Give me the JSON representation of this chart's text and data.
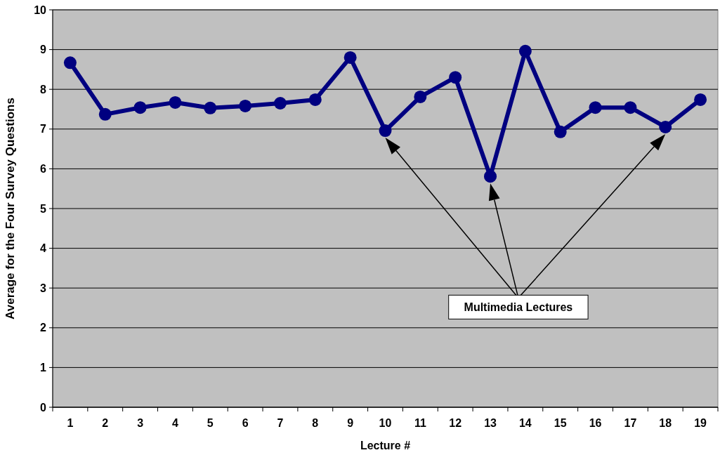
{
  "chart_data": {
    "type": "line",
    "xlabel": "Lecture #",
    "ylabel": "Average for the Four Survey Questions",
    "categories": [
      "1",
      "2",
      "3",
      "4",
      "5",
      "6",
      "7",
      "8",
      "9",
      "10",
      "11",
      "12",
      "13",
      "14",
      "15",
      "16",
      "17",
      "18",
      "19"
    ],
    "series": [
      {
        "color": "#000080",
        "values": [
          8.67,
          7.37,
          7.54,
          7.67,
          7.53,
          7.58,
          7.65,
          7.74,
          8.8,
          6.96,
          7.81,
          8.3,
          5.81,
          8.96,
          6.93,
          7.54,
          7.54,
          7.05,
          7.74
        ]
      }
    ],
    "ylim": [
      0,
      10
    ],
    "yticks": [
      0,
      1,
      2,
      3,
      4,
      5,
      6,
      7,
      8,
      9,
      10
    ],
    "grid": "y",
    "marker": "circle",
    "line_style": "solid",
    "annotations": [
      "Multimedia Lectures"
    ]
  }
}
